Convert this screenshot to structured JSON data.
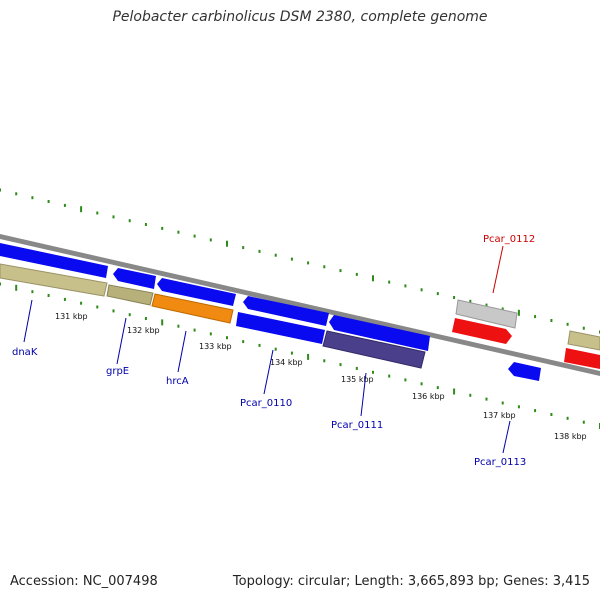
{
  "title": "Pelobacter carbinolicus DSM 2380, complete genome",
  "footer": {
    "accession": "Accession: NC_007498",
    "topology": "Topology: circular; Length: 3,665,893 bp; Genes: 3,415"
  },
  "colors": {
    "backbone": "#888888",
    "tick": "#2e8b1a",
    "blue_gene": "#0a0af0",
    "khaki_gene": "#c8c08a",
    "orange_gene": "#f08a10",
    "slate_gene": "#4a3f8a",
    "red_gene": "#ee1111",
    "gray_gene": "#c8c8c8",
    "label_blue": "#0000aa",
    "label_red": "#cc0000"
  },
  "ticks": [
    "131 kbp",
    "132 kbp",
    "133 kbp",
    "134 kbp",
    "135 kbp",
    "136 kbp",
    "137 kbp",
    "138 kbp"
  ],
  "genes": [
    {
      "name": "dnaK",
      "strand": "reverse",
      "color": "blue_gene"
    },
    {
      "name": "grpE",
      "strand": "reverse",
      "color": "blue_gene"
    },
    {
      "name": "hrcA",
      "strand": "reverse",
      "color": "blue_gene"
    },
    {
      "name": "Pcar_0110",
      "strand": "reverse",
      "color": "blue_gene"
    },
    {
      "name": "Pcar_0111",
      "strand": "reverse",
      "color": "blue_gene"
    },
    {
      "name": "Pcar_0112",
      "strand": "forward",
      "color": "red_gene"
    },
    {
      "name": "Pcar_0113",
      "strand": "reverse",
      "color": "blue_gene"
    }
  ]
}
